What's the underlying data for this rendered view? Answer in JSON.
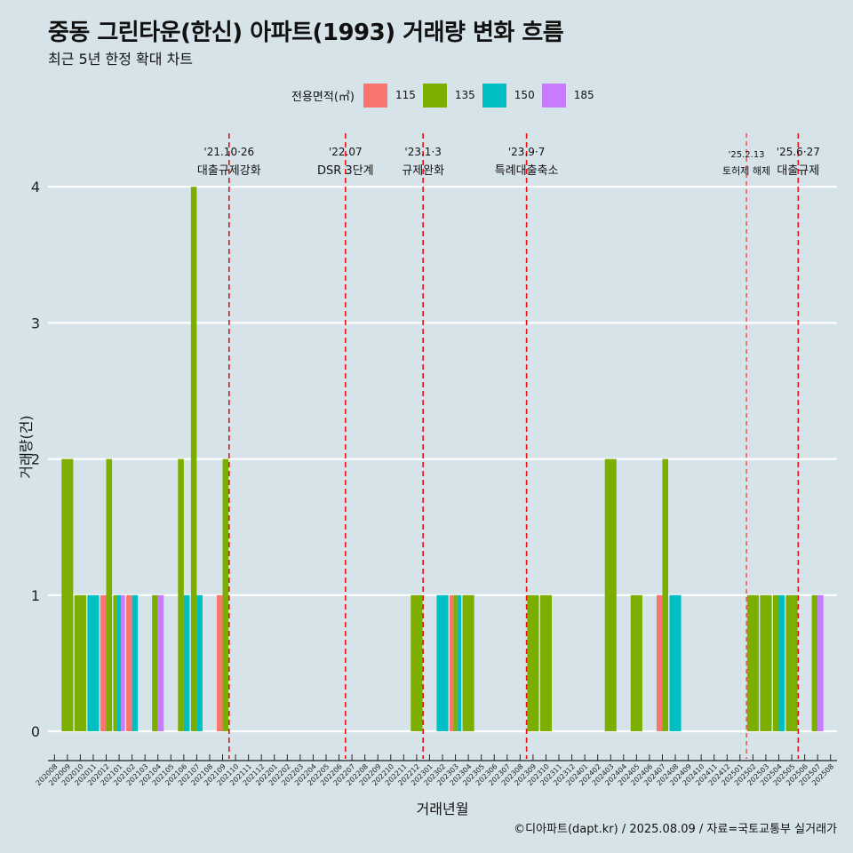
{
  "header": {
    "title": "중동 그린타운(한신) 아파트(1993) 거래량 변화 흐름",
    "subtitle": "최근 5년 한정 확대 차트"
  },
  "legend": {
    "title": "전용면적(㎡)",
    "items": [
      {
        "label": "115",
        "color": "#f8766d"
      },
      {
        "label": "135",
        "color": "#7cae00"
      },
      {
        "label": "150",
        "color": "#00bfc4"
      },
      {
        "label": "185",
        "color": "#c77cff"
      }
    ]
  },
  "caption": "©디아파트(dapt.kr) / 2025.08.09 / 자료=국토교통부 실거래가",
  "chart_data": {
    "type": "bar",
    "xlabel": "거래년월",
    "ylabel": "거래량(건)",
    "ylim": [
      -0.18,
      4.45
    ],
    "yticks": [
      0,
      1,
      2,
      3,
      4
    ],
    "grid": "horizontal major lines",
    "legend_position": "top",
    "categories": [
      "202008",
      "202009",
      "202010",
      "202011",
      "202012",
      "202101",
      "202102",
      "202103",
      "202104",
      "202105",
      "202106",
      "202107",
      "202108",
      "202109",
      "202110",
      "202111",
      "202112",
      "202201",
      "202202",
      "202203",
      "202204",
      "202205",
      "202206",
      "202207",
      "202208",
      "202209",
      "202210",
      "202211",
      "202212",
      "202301",
      "202302",
      "202303",
      "202304",
      "202305",
      "202306",
      "202307",
      "202308",
      "202309",
      "202310",
      "202311",
      "202312",
      "202401",
      "202402",
      "202403",
      "202404",
      "202405",
      "202406",
      "202407",
      "202408",
      "202409",
      "202410",
      "202411",
      "202412",
      "202501",
      "202502",
      "202503",
      "202504",
      "202505",
      "202506",
      "202507",
      "202508"
    ],
    "series": [
      {
        "name": "115",
        "color": "#f8766d",
        "values": [
          0,
          0,
          0,
          0,
          1,
          0,
          1,
          0,
          0,
          0,
          0,
          0,
          0,
          1,
          0,
          0,
          0,
          0,
          0,
          0,
          0,
          0,
          0,
          0,
          0,
          0,
          0,
          0,
          0,
          0,
          0,
          1,
          0,
          0,
          0,
          0,
          0,
          0,
          0,
          0,
          0,
          0,
          0,
          0,
          0,
          0,
          0,
          1,
          0,
          0,
          0,
          0,
          0,
          0,
          0,
          0,
          0,
          0,
          0,
          0,
          0
        ]
      },
      {
        "name": "135",
        "color": "#7cae00",
        "values": [
          0,
          2,
          1,
          0,
          2,
          1,
          0,
          0,
          1,
          0,
          2,
          4,
          0,
          2,
          0,
          0,
          0,
          0,
          0,
          0,
          0,
          0,
          0,
          0,
          0,
          0,
          0,
          0,
          1,
          0,
          0,
          1,
          1,
          0,
          0,
          0,
          0,
          1,
          1,
          0,
          0,
          0,
          0,
          2,
          0,
          1,
          0,
          2,
          0,
          0,
          0,
          0,
          0,
          0,
          1,
          1,
          1,
          1,
          0,
          1,
          0
        ]
      },
      {
        "name": "150",
        "color": "#00bfc4",
        "values": [
          0,
          0,
          0,
          1,
          0,
          1,
          1,
          0,
          0,
          0,
          1,
          1,
          0,
          0,
          0,
          0,
          0,
          0,
          0,
          0,
          0,
          0,
          0,
          0,
          0,
          0,
          0,
          0,
          0,
          0,
          1,
          1,
          0,
          0,
          0,
          0,
          0,
          0,
          0,
          0,
          0,
          0,
          0,
          0,
          0,
          0,
          0,
          0,
          1,
          0,
          0,
          0,
          0,
          0,
          0,
          0,
          1,
          0,
          0,
          0,
          0
        ]
      },
      {
        "name": "185",
        "color": "#c77cff",
        "values": [
          0,
          0,
          0,
          0,
          0,
          1,
          0,
          0,
          1,
          0,
          0,
          0,
          0,
          0,
          0,
          0,
          0,
          0,
          0,
          0,
          0,
          0,
          0,
          0,
          0,
          0,
          0,
          0,
          0,
          0,
          0,
          0,
          0,
          0,
          0,
          0,
          0,
          0,
          0,
          0,
          0,
          0,
          0,
          0,
          0,
          0,
          0,
          0,
          0,
          0,
          0,
          0,
          0,
          0,
          0,
          0,
          0,
          0,
          0,
          1,
          0
        ]
      }
    ],
    "events": [
      {
        "x": "202110",
        "line1": "'21.10·26",
        "line2": "대출규제강화",
        "style": "dashed"
      },
      {
        "x": "202207",
        "line1": "'22.07",
        "line2": "DSR 3단계",
        "style": "dashed"
      },
      {
        "x": "202301",
        "line1": "'23.1·3",
        "line2": "규제완화",
        "style": "dashed"
      },
      {
        "x": "202309",
        "line1": "'23.9·7",
        "line2": "특례대출축소",
        "style": "dashed"
      },
      {
        "x": "202502",
        "line1": "'25.2.13",
        "line2": "토허제 해제",
        "style": "thin"
      },
      {
        "x": "202506",
        "line1": "'25.6·27",
        "line2": "대출규제",
        "style": "dashed"
      }
    ]
  }
}
